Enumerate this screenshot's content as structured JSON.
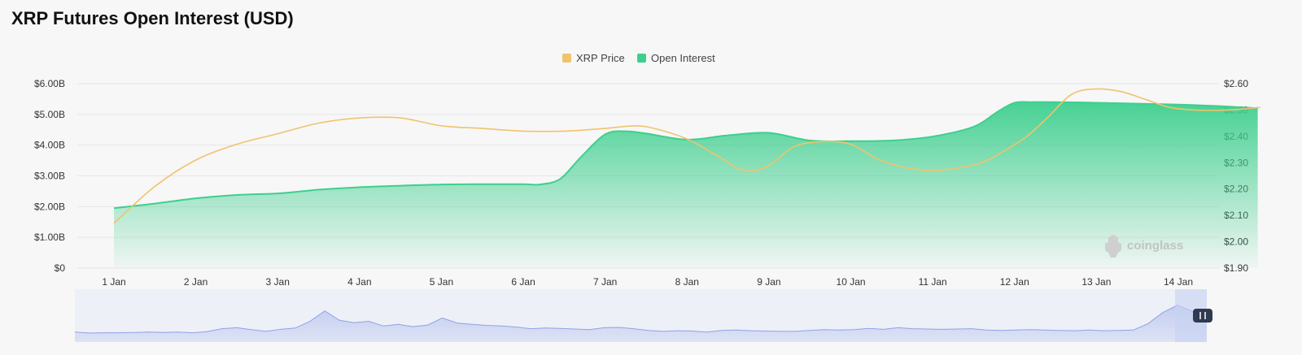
{
  "title": "XRP Futures Open Interest (USD)",
  "watermark": "coinglass",
  "colors": {
    "price": "#f0c36d",
    "open_interest": "#3ecf8e",
    "navigator": "#8fa3e6"
  },
  "chart_data": {
    "type": "area",
    "title": "XRP Futures Open Interest (USD)",
    "categories": [
      "1 Jan",
      "2 Jan",
      "3 Jan",
      "4 Jan",
      "5 Jan",
      "6 Jan",
      "7 Jan",
      "8 Jan",
      "9 Jan",
      "10 Jan",
      "11 Jan",
      "12 Jan",
      "13 Jan",
      "14 Jan"
    ],
    "legend": [
      "XRP Price",
      "Open Interest"
    ],
    "legend_position": "top-center",
    "y_left": {
      "ticks": [
        "$0",
        "$1.00B",
        "$2.00B",
        "$3.00B",
        "$4.00B",
        "$5.00B",
        "$6.00B"
      ],
      "range": [
        0,
        6.0
      ],
      "unit": "USD billions"
    },
    "y_right": {
      "ticks": [
        "$1.90",
        "$2.00",
        "$2.10",
        "$2.20",
        "$2.30",
        "$2.40",
        "$2.50",
        "$2.60"
      ],
      "range": [
        1.9,
        2.6
      ],
      "unit": "USD"
    },
    "grid": true,
    "series": [
      {
        "name": "Open Interest",
        "axis": "left",
        "kind": "area",
        "x": [
          0,
          0.5,
          1.0,
          1.5,
          2.0,
          2.5,
          3.0,
          3.5,
          4.0,
          4.5,
          5.0,
          5.2,
          5.45,
          5.7,
          6.0,
          6.25,
          6.5,
          7.0,
          7.5,
          8.0,
          8.5,
          9.0,
          9.5,
          10.0,
          10.5,
          10.8,
          11.0,
          11.2,
          11.5,
          12.0,
          12.5,
          13.0,
          13.5,
          13.97
        ],
        "values": [
          1.95,
          2.1,
          2.27,
          2.38,
          2.43,
          2.55,
          2.63,
          2.68,
          2.72,
          2.73,
          2.73,
          2.72,
          2.9,
          3.6,
          4.35,
          4.45,
          4.38,
          4.18,
          4.32,
          4.4,
          4.15,
          4.13,
          4.15,
          4.28,
          4.6,
          5.1,
          5.38,
          5.4,
          5.4,
          5.38,
          5.35,
          5.32,
          5.27,
          5.2
        ]
      },
      {
        "name": "XRP Price",
        "axis": "right",
        "kind": "line",
        "x": [
          0,
          0.5,
          1.0,
          1.5,
          2.0,
          2.5,
          3.0,
          3.5,
          4.0,
          4.5,
          5.0,
          5.5,
          6.0,
          6.35,
          6.6,
          7.0,
          7.35,
          7.7,
          8.0,
          8.3,
          8.65,
          9.0,
          9.35,
          9.7,
          10.0,
          10.3,
          10.6,
          10.9,
          11.15,
          11.4,
          11.7,
          12.0,
          12.3,
          12.6,
          12.9,
          13.2,
          13.6,
          14.0
        ],
        "values": [
          2.07,
          2.21,
          2.31,
          2.37,
          2.41,
          2.45,
          2.47,
          2.47,
          2.44,
          2.43,
          2.42,
          2.42,
          2.43,
          2.44,
          2.43,
          2.39,
          2.33,
          2.27,
          2.29,
          2.36,
          2.38,
          2.37,
          2.31,
          2.28,
          2.27,
          2.28,
          2.3,
          2.35,
          2.4,
          2.47,
          2.56,
          2.58,
          2.57,
          2.54,
          2.51,
          2.5,
          2.5,
          2.51
        ]
      }
    ],
    "navigator": {
      "values": [
        0.2,
        0.17,
        0.18,
        0.18,
        0.19,
        0.2,
        0.19,
        0.2,
        0.18,
        0.21,
        0.3,
        0.33,
        0.27,
        0.22,
        0.28,
        0.32,
        0.52,
        0.83,
        0.55,
        0.48,
        0.52,
        0.38,
        0.43,
        0.36,
        0.41,
        0.62,
        0.47,
        0.43,
        0.4,
        0.38,
        0.35,
        0.3,
        0.32,
        0.31,
        0.29,
        0.27,
        0.33,
        0.34,
        0.3,
        0.25,
        0.22,
        0.24,
        0.23,
        0.2,
        0.25,
        0.26,
        0.24,
        0.23,
        0.22,
        0.22,
        0.25,
        0.27,
        0.26,
        0.27,
        0.31,
        0.28,
        0.33,
        0.3,
        0.29,
        0.28,
        0.29,
        0.3,
        0.26,
        0.25,
        0.26,
        0.27,
        0.26,
        0.25,
        0.24,
        0.26,
        0.24,
        0.25,
        0.26,
        0.45,
        0.78,
        1.0,
        0.82,
        0.88
      ]
    }
  }
}
